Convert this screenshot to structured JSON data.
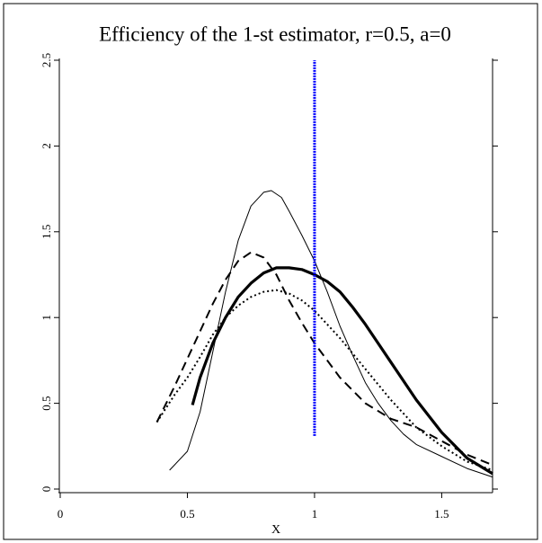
{
  "chart_data": {
    "type": "line",
    "title": "Efficiency of the 1-st estimator, r=0.5, a=0",
    "xlabel": "X",
    "xlim": [
      0,
      1.7
    ],
    "ylim": [
      0,
      2.5
    ],
    "xticks": [
      0,
      0.5,
      1,
      1.5
    ],
    "yticks": [
      0,
      0.5,
      1,
      1.5,
      2,
      2.5
    ],
    "series": [
      {
        "color": "#000000",
        "style": "thin",
        "x": [
          0.43,
          0.5,
          0.55,
          0.6,
          0.65,
          0.7,
          0.75,
          0.8,
          0.83,
          0.87,
          0.9,
          0.95,
          1,
          1.05,
          1.1,
          1.15,
          1.2,
          1.25,
          1.3,
          1.35,
          1.4,
          1.5,
          1.6,
          1.7
        ],
        "values": [
          0.11,
          0.22,
          0.45,
          0.8,
          1.15,
          1.45,
          1.65,
          1.73,
          1.74,
          1.7,
          1.62,
          1.48,
          1.33,
          1.15,
          0.95,
          0.78,
          0.62,
          0.5,
          0.4,
          0.32,
          0.26,
          0.19,
          0.12,
          0.07
        ]
      },
      {
        "color": "#000000",
        "style": "dashed",
        "x": [
          0.38,
          0.45,
          0.5,
          0.55,
          0.6,
          0.65,
          0.7,
          0.75,
          0.8,
          0.85,
          0.9,
          0.95,
          1,
          1.1,
          1.2,
          1.3,
          1.4,
          1.5,
          1.6,
          1.7
        ],
        "values": [
          0.39,
          0.6,
          0.76,
          0.92,
          1.08,
          1.22,
          1.33,
          1.38,
          1.35,
          1.25,
          1.1,
          0.97,
          0.85,
          0.65,
          0.5,
          0.41,
          0.36,
          0.28,
          0.2,
          0.14
        ]
      },
      {
        "color": "#000000",
        "style": "dotted",
        "x": [
          0.38,
          0.45,
          0.5,
          0.55,
          0.6,
          0.65,
          0.7,
          0.75,
          0.8,
          0.85,
          0.9,
          0.95,
          1,
          1.1,
          1.2,
          1.3,
          1.4,
          1.5,
          1.6,
          1.7
        ],
        "values": [
          0.39,
          0.55,
          0.65,
          0.77,
          0.9,
          1.0,
          1.07,
          1.12,
          1.15,
          1.16,
          1.14,
          1.1,
          1.04,
          0.88,
          0.7,
          0.52,
          0.36,
          0.25,
          0.16,
          0.11
        ]
      },
      {
        "color": "#000000",
        "style": "thick",
        "x": [
          0.52,
          0.55,
          0.6,
          0.65,
          0.7,
          0.75,
          0.8,
          0.85,
          0.9,
          0.95,
          1,
          1.05,
          1.1,
          1.15,
          1.2,
          1.3,
          1.4,
          1.5,
          1.6,
          1.7
        ],
        "values": [
          0.49,
          0.65,
          0.85,
          1.0,
          1.12,
          1.2,
          1.26,
          1.29,
          1.29,
          1.28,
          1.25,
          1.21,
          1.15,
          1.06,
          0.96,
          0.74,
          0.52,
          0.33,
          0.18,
          0.09
        ]
      }
    ],
    "vline": {
      "x": 1,
      "y": [
        0.31,
        2.5
      ],
      "color": "#0000ff"
    }
  }
}
